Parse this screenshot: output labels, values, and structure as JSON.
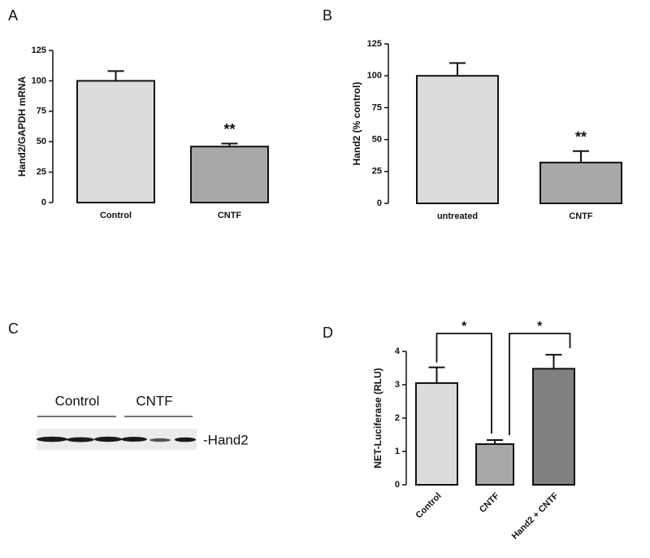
{
  "chart_data": [
    {
      "type": "bar",
      "panel": "A",
      "ylabel": "Hand2/GAPDH mRNA",
      "categories": [
        "Control",
        "CNTF"
      ],
      "values": [
        100,
        46
      ],
      "errors": [
        8,
        2.5
      ],
      "colors": [
        "#dcdcdc",
        "#a8a8a8"
      ],
      "ylim": [
        0,
        125
      ],
      "yticks": [
        0,
        25,
        50,
        75,
        100,
        125
      ],
      "annotations": [
        "**"
      ]
    },
    {
      "type": "bar",
      "panel": "B",
      "ylabel": "Hand2 (% control)",
      "categories": [
        "untreated",
        "CNTF"
      ],
      "values": [
        100,
        32
      ],
      "errors": [
        10,
        9
      ],
      "colors": [
        "#dcdcdc",
        "#a8a8a8"
      ],
      "ylim": [
        0,
        125
      ],
      "yticks": [
        0,
        25,
        50,
        75,
        100,
        125
      ],
      "annotations": [
        "**"
      ]
    },
    {
      "type": "bar",
      "panel": "D",
      "ylabel": "NET-Luciferase (RLU)",
      "categories": [
        "Control",
        "CNTF",
        "Hand2 + CNTF"
      ],
      "values": [
        3.05,
        1.22,
        3.48
      ],
      "errors": [
        0.47,
        0.12,
        0.42
      ],
      "colors": [
        "#dcdcdc",
        "#a8a8a8",
        "#808080"
      ],
      "ylim": [
        0,
        4
      ],
      "yticks": [
        0,
        1,
        2,
        3,
        4
      ],
      "brackets": [
        "*",
        "*"
      ]
    }
  ],
  "blot": {
    "panel": "C",
    "groups": [
      "Control",
      "CNTF"
    ],
    "band_label": "-Hand2"
  }
}
